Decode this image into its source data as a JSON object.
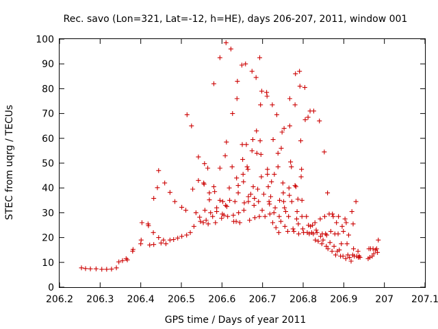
{
  "chart_data": {
    "type": "scatter",
    "title": "Rec. savo (Lon=321, Lat=-12, h=HE), days 206-207, 2011, window 001",
    "xlabel": "GPS time / Days of year 2011",
    "ylabel": "STEC from uqrg / TECUs",
    "xlim": [
      206.2,
      207.1
    ],
    "ylim": [
      0,
      100
    ],
    "x_ticks": [
      206.2,
      206.3,
      206.4,
      206.5,
      206.6,
      206.7,
      206.8,
      206.9,
      207,
      207.1
    ],
    "x_tick_labels": [
      "206.2",
      "206.3",
      "206.4",
      "206.5",
      "206.6",
      "206.7",
      "206.8",
      "206.9",
      "207",
      "207.1"
    ],
    "y_ticks": [
      0,
      10,
      20,
      30,
      40,
      50,
      60,
      70,
      80,
      90,
      100
    ],
    "y_tick_labels": [
      "0",
      "10",
      "20",
      "30",
      "40",
      "50",
      "60",
      "70",
      "80",
      "90",
      "100"
    ],
    "grid": false,
    "marker": "+",
    "color": "#cc0000",
    "series": [
      {
        "name": "STEC",
        "points": [
          [
            206.254,
            7.8
          ],
          [
            206.264,
            7.5
          ],
          [
            206.276,
            7.4
          ],
          [
            206.29,
            7.4
          ],
          [
            206.304,
            7.2
          ],
          [
            206.316,
            7.2
          ],
          [
            206.328,
            7.3
          ],
          [
            206.34,
            7.8
          ],
          [
            206.346,
            10.2
          ],
          [
            206.355,
            10.7
          ],
          [
            206.364,
            11.5
          ],
          [
            206.367,
            11.0
          ],
          [
            206.38,
            14.5
          ],
          [
            206.381,
            15.2
          ],
          [
            206.4,
            17.5
          ],
          [
            206.401,
            19.0
          ],
          [
            206.403,
            26.0
          ],
          [
            206.418,
            25.5
          ],
          [
            206.419,
            24.8
          ],
          [
            206.422,
            17.0
          ],
          [
            206.431,
            22.0
          ],
          [
            206.432,
            35.8
          ],
          [
            206.432,
            17.2
          ],
          [
            206.441,
            40.1
          ],
          [
            206.444,
            47.0
          ],
          [
            206.444,
            20.0
          ],
          [
            206.45,
            17.8
          ],
          [
            206.456,
            19.0
          ],
          [
            206.459,
            42.0
          ],
          [
            206.462,
            17.5
          ],
          [
            206.472,
            38.2
          ],
          [
            206.472,
            19.0
          ],
          [
            206.481,
            19.2
          ],
          [
            206.484,
            34.5
          ],
          [
            206.491,
            19.8
          ],
          [
            206.501,
            20.5
          ],
          [
            206.501,
            32.2
          ],
          [
            206.511,
            31.0
          ],
          [
            206.513,
            21.0
          ],
          [
            206.514,
            69.5
          ],
          [
            206.522,
            22.0
          ],
          [
            206.525,
            65.0
          ],
          [
            206.528,
            39.5
          ],
          [
            206.531,
            24.5
          ],
          [
            206.536,
            30.0
          ],
          [
            206.542,
            43.0
          ],
          [
            206.542,
            52.5
          ],
          [
            206.545,
            28.2
          ],
          [
            206.547,
            26.5
          ],
          [
            206.554,
            26.0
          ],
          [
            206.555,
            42.0
          ],
          [
            206.556,
            41.5
          ],
          [
            206.557,
            49.8
          ],
          [
            206.558,
            31.0
          ],
          [
            206.561,
            27.0
          ],
          [
            206.565,
            48.0
          ],
          [
            206.566,
            25.5
          ],
          [
            206.569,
            38.0
          ],
          [
            206.569,
            35.2
          ],
          [
            206.572,
            30.0
          ],
          [
            206.577,
            28.5
          ],
          [
            206.58,
            82.0
          ],
          [
            206.58,
            40.5
          ],
          [
            206.582,
            38.5
          ],
          [
            206.584,
            26.0
          ],
          [
            206.587,
            32.0
          ],
          [
            206.587,
            30.5
          ],
          [
            206.595,
            92.5
          ],
          [
            206.595,
            48.0
          ],
          [
            206.595,
            35.0
          ],
          [
            206.599,
            27.8
          ],
          [
            206.601,
            29.5
          ],
          [
            206.602,
            34.5
          ],
          [
            206.605,
            29.0
          ],
          [
            206.608,
            53.0
          ],
          [
            206.609,
            33.0
          ],
          [
            206.61,
            98.5
          ],
          [
            206.611,
            58.5
          ],
          [
            206.612,
            32.5
          ],
          [
            206.614,
            28.5
          ],
          [
            206.618,
            40.0
          ],
          [
            206.619,
            35.0
          ],
          [
            206.622,
            96.0
          ],
          [
            206.625,
            48.5
          ],
          [
            206.626,
            70.0
          ],
          [
            206.628,
            29.0
          ],
          [
            206.629,
            26.5
          ],
          [
            206.632,
            34.5
          ],
          [
            206.635,
            26.5
          ],
          [
            206.636,
            44.0
          ],
          [
            206.637,
            76.0
          ],
          [
            206.638,
            83.0
          ],
          [
            206.64,
            41.0
          ],
          [
            206.64,
            38.0
          ],
          [
            206.641,
            30.0
          ],
          [
            206.644,
            26.0
          ],
          [
            206.649,
            89.5
          ],
          [
            206.65,
            57.5
          ],
          [
            206.651,
            51.5
          ],
          [
            206.652,
            45.5
          ],
          [
            206.653,
            42.5
          ],
          [
            206.654,
            31.0
          ],
          [
            206.655,
            34.0
          ],
          [
            206.658,
            90.0
          ],
          [
            206.66,
            57.5
          ],
          [
            206.662,
            48.5
          ],
          [
            206.664,
            47.5
          ],
          [
            206.665,
            36.5
          ],
          [
            206.665,
            34.5
          ],
          [
            206.668,
            27.0
          ],
          [
            206.671,
            37.5
          ],
          [
            206.674,
            87.0
          ],
          [
            206.674,
            55.0
          ],
          [
            206.676,
            59.5
          ],
          [
            206.677,
            40.5
          ],
          [
            206.679,
            33.0
          ],
          [
            206.68,
            35.8
          ],
          [
            206.681,
            28.0
          ],
          [
            206.684,
            84.5
          ],
          [
            206.685,
            63.0
          ],
          [
            206.686,
            54.0
          ],
          [
            206.688,
            39.5
          ],
          [
            206.69,
            34.5
          ],
          [
            206.692,
            28.5
          ],
          [
            206.693,
            92.5
          ],
          [
            206.694,
            59.0
          ],
          [
            206.695,
            73.5
          ],
          [
            206.696,
            53.5
          ],
          [
            206.697,
            44.5
          ],
          [
            206.698,
            79.0
          ],
          [
            206.699,
            31.0
          ],
          [
            206.703,
            37.5
          ],
          [
            206.706,
            28.5
          ],
          [
            206.71,
            78.5
          ],
          [
            206.711,
            77.0
          ],
          [
            206.712,
            47.5
          ],
          [
            206.712,
            45.5
          ],
          [
            206.714,
            40.5
          ],
          [
            206.716,
            34.5
          ],
          [
            206.717,
            33.5
          ],
          [
            206.718,
            29.5
          ],
          [
            206.72,
            36.5
          ],
          [
            206.722,
            42.5
          ],
          [
            206.724,
            73.5
          ],
          [
            206.725,
            26.0
          ],
          [
            206.726,
            59.5
          ],
          [
            206.728,
            30.0
          ],
          [
            206.729,
            45.5
          ],
          [
            206.731,
            32.0
          ],
          [
            206.733,
            24.0
          ],
          [
            206.735,
            69.5
          ],
          [
            206.738,
            48.5
          ],
          [
            206.738,
            54.0
          ],
          [
            206.74,
            22.0
          ],
          [
            206.741,
            28.5
          ],
          [
            206.742,
            35.0
          ],
          [
            206.745,
            26.5
          ],
          [
            206.746,
            56.0
          ],
          [
            206.748,
            62.5
          ],
          [
            206.75,
            42.0
          ],
          [
            206.751,
            38.0
          ],
          [
            206.752,
            34.5
          ],
          [
            206.753,
            64.0
          ],
          [
            206.754,
            32.0
          ],
          [
            206.755,
            24.5
          ],
          [
            206.757,
            30.5
          ],
          [
            206.762,
            22.5
          ],
          [
            206.764,
            28.5
          ],
          [
            206.765,
            40.0
          ],
          [
            206.766,
            37.0
          ],
          [
            206.767,
            76.0
          ],
          [
            206.767,
            65.0
          ],
          [
            206.769,
            50.5
          ],
          [
            206.771,
            48.5
          ],
          [
            206.772,
            34.5
          ],
          [
            206.775,
            23.5
          ],
          [
            206.777,
            22.5
          ],
          [
            206.78,
            41.0
          ],
          [
            206.78,
            73.5
          ],
          [
            206.781,
            86.0
          ],
          [
            206.782,
            40.5
          ],
          [
            206.784,
            27.5
          ],
          [
            206.785,
            30.5
          ],
          [
            206.787,
            35.5
          ],
          [
            206.788,
            25.5
          ],
          [
            206.789,
            21.5
          ],
          [
            206.791,
            87.0
          ],
          [
            206.792,
            81.0
          ],
          [
            206.794,
            59.0
          ],
          [
            206.795,
            44.5
          ],
          [
            206.796,
            47.5
          ],
          [
            206.797,
            35.0
          ],
          [
            206.797,
            28.5
          ],
          [
            206.799,
            23.5
          ],
          [
            206.801,
            22.0
          ],
          [
            206.804,
            80.5
          ],
          [
            206.805,
            67.5
          ],
          [
            206.808,
            28.5
          ],
          [
            206.81,
            22.0
          ],
          [
            206.812,
            68.5
          ],
          [
            206.813,
            25.0
          ],
          [
            206.815,
            21.5
          ],
          [
            206.817,
            71.0
          ],
          [
            206.818,
            24.5
          ],
          [
            206.821,
            22.0
          ],
          [
            206.823,
            25.0
          ],
          [
            206.825,
            21.5
          ],
          [
            206.826,
            71.0
          ],
          [
            206.829,
            26.0
          ],
          [
            206.83,
            19.0
          ],
          [
            206.832,
            23.0
          ],
          [
            206.834,
            22.0
          ],
          [
            206.837,
            18.5
          ],
          [
            206.84,
            67.0
          ],
          [
            206.842,
            27.5
          ],
          [
            206.843,
            20.5
          ],
          [
            206.846,
            17.5
          ],
          [
            206.847,
            21.5
          ],
          [
            206.849,
            19.0
          ],
          [
            206.852,
            54.5
          ],
          [
            206.853,
            28.5
          ],
          [
            206.855,
            21.5
          ],
          [
            206.857,
            16.5
          ],
          [
            206.858,
            21.0
          ],
          [
            206.86,
            38.0
          ],
          [
            206.861,
            15.5
          ],
          [
            206.864,
            29.5
          ],
          [
            206.866,
            18.0
          ],
          [
            206.868,
            22.5
          ],
          [
            206.871,
            14.5
          ],
          [
            206.872,
            29.5
          ],
          [
            206.874,
            28.5
          ],
          [
            206.876,
            16.5
          ],
          [
            206.878,
            21.5
          ],
          [
            206.88,
            13.0
          ],
          [
            206.882,
            26.0
          ],
          [
            206.884,
            14.5
          ],
          [
            206.886,
            21.5
          ],
          [
            206.887,
            28.5
          ],
          [
            206.889,
            15.0
          ],
          [
            206.892,
            12.5
          ],
          [
            206.894,
            17.5
          ],
          [
            206.896,
            24.5
          ],
          [
            206.898,
            12.5
          ],
          [
            206.899,
            22.5
          ],
          [
            206.903,
            27.5
          ],
          [
            206.905,
            11.5
          ],
          [
            206.906,
            26.0
          ],
          [
            206.908,
            17.5
          ],
          [
            206.91,
            13.0
          ],
          [
            206.912,
            21.0
          ],
          [
            206.914,
            12.0
          ],
          [
            206.918,
            10.5
          ],
          [
            206.92,
            30.5
          ],
          [
            206.922,
            13.0
          ],
          [
            206.923,
            25.5
          ],
          [
            206.924,
            15.5
          ],
          [
            206.926,
            12.5
          ],
          [
            206.93,
            34.5
          ],
          [
            206.932,
            12.5
          ],
          [
            206.935,
            14.5
          ],
          [
            206.936,
            12.0
          ],
          [
            206.938,
            12.5
          ],
          [
            206.94,
            12.0
          ],
          [
            206.96,
            11.5
          ],
          [
            206.962,
            15.5
          ],
          [
            206.964,
            12.0
          ],
          [
            206.966,
            15.5
          ],
          [
            206.97,
            12.5
          ],
          [
            206.972,
            15.5
          ],
          [
            206.974,
            13.5
          ],
          [
            206.978,
            15.0
          ],
          [
            206.981,
            15.5
          ],
          [
            206.983,
            14.0
          ],
          [
            206.985,
            19.0
          ]
        ]
      }
    ]
  }
}
